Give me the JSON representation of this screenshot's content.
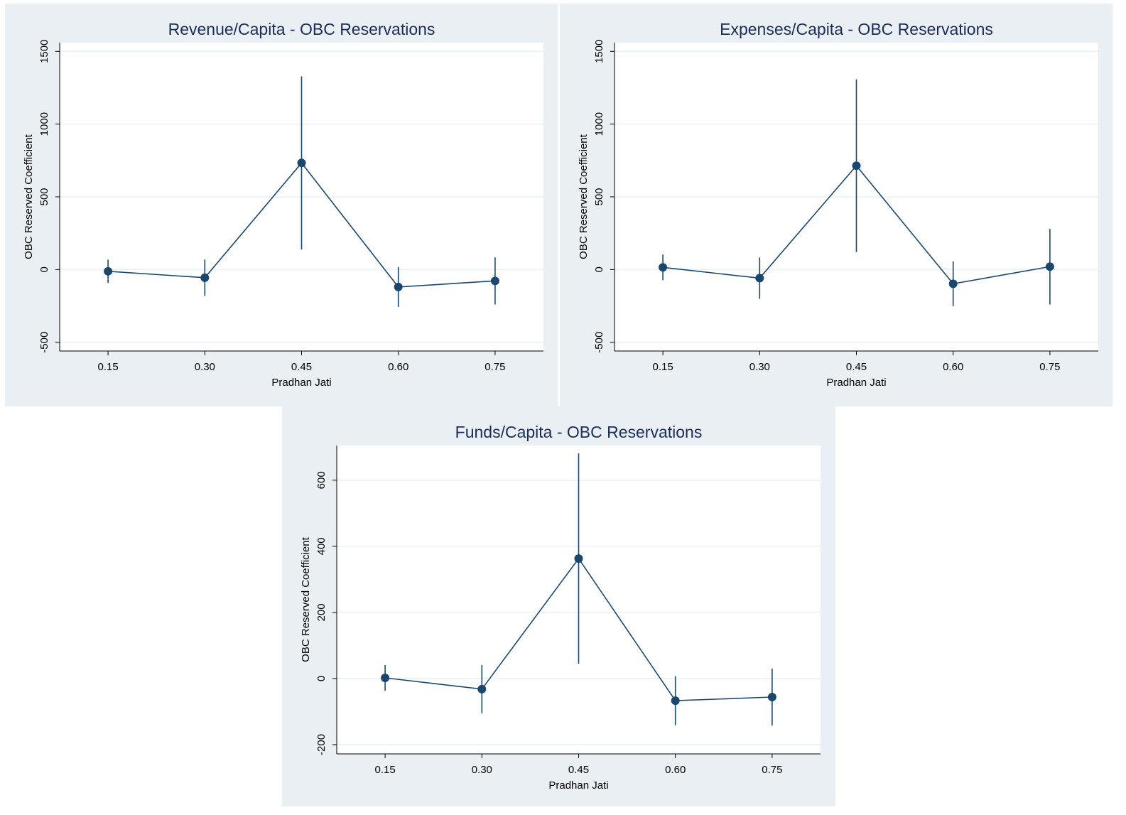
{
  "chart_data": [
    {
      "type": "line",
      "title": "Revenue/Capita - OBC Reservations",
      "x_label": "Pradhan Jati",
      "y_label": "OBC Reserved Coefficient",
      "x": [
        0.15,
        0.3,
        0.45,
        0.6,
        0.75
      ],
      "values": [
        -12,
        -56,
        733,
        -120,
        -78
      ],
      "errors": [
        80,
        125,
        595,
        137,
        162
      ],
      "xlim": [
        0.075,
        0.825
      ],
      "ylim": [
        -560,
        1560
      ],
      "xticks": [
        0.15,
        {
          "value": 0.3,
          "label": "0.30"
        },
        0.45,
        {
          "value": 0.6,
          "label": "0.60"
        },
        0.75
      ],
      "yticks": [
        -500,
        0,
        500,
        1000,
        1500
      ],
      "color": "#1a476f",
      "grid": true
    },
    {
      "type": "line",
      "title": "Expenses/Capita - OBC Reservations",
      "x_label": "Pradhan Jati",
      "y_label": "OBC Reserved Coefficient",
      "x": [
        0.15,
        0.3,
        0.45,
        0.6,
        0.75
      ],
      "values": [
        15,
        -59,
        714,
        -98,
        20
      ],
      "errors": [
        88,
        142,
        594,
        154,
        260
      ],
      "xlim": [
        0.075,
        0.825
      ],
      "ylim": [
        -560,
        1560
      ],
      "xticks": [
        0.15,
        {
          "value": 0.3,
          "label": "0.30"
        },
        0.45,
        {
          "value": 0.6,
          "label": "0.60"
        },
        0.75
      ],
      "yticks": [
        -500,
        0,
        500,
        1000,
        1500
      ],
      "color": "#1a476f",
      "grid": true
    },
    {
      "type": "line",
      "title": "Funds/Capita - OBC Reservations",
      "x_label": "Pradhan Jati",
      "y_label": "OBC Reserved Coefficient",
      "x": [
        0.15,
        0.3,
        0.45,
        0.6,
        0.75
      ],
      "values": [
        2,
        -32,
        363,
        -67,
        -56
      ],
      "errors": [
        39,
        73,
        318,
        74,
        86
      ],
      "xlim": [
        0.075,
        0.825
      ],
      "ylim": [
        -228,
        705
      ],
      "xticks": [
        0.15,
        {
          "value": 0.3,
          "label": "0.30"
        },
        0.45,
        {
          "value": 0.6,
          "label": "0.60"
        },
        0.75
      ],
      "yticks": [
        -200,
        0,
        200,
        400,
        600
      ],
      "color": "#1a476f",
      "grid": true
    }
  ]
}
